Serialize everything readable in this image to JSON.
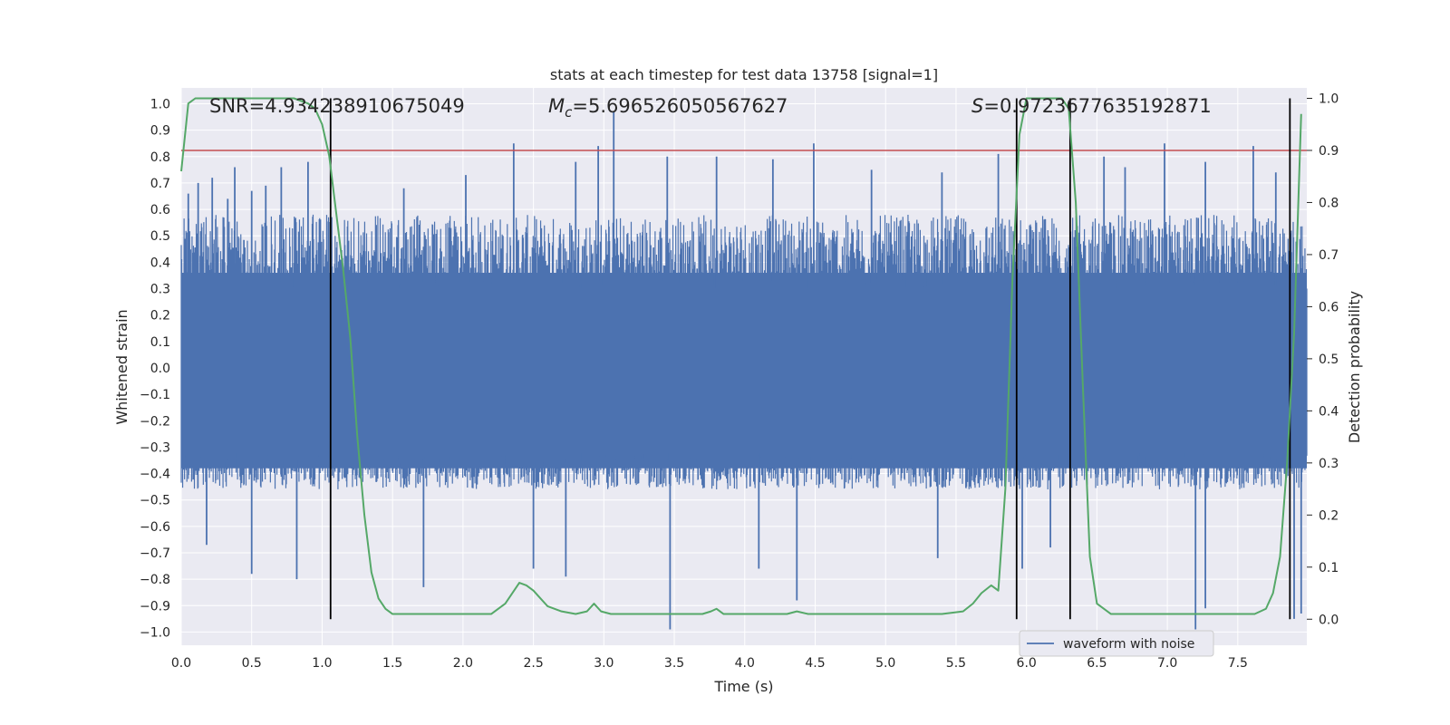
{
  "chart_data": {
    "type": "line",
    "title": "stats at each timestep for test data 13758 [signal=1]",
    "xlabel": "Time (s)",
    "ylabel_left": "Whitened strain",
    "ylabel_right": "Detection probability",
    "xlim": [
      0.0,
      7.99
    ],
    "ylim_left": [
      -1.05,
      1.06
    ],
    "ylim_right": [
      -0.05,
      1.02
    ],
    "x_ticks": [
      0.0,
      0.5,
      1.0,
      1.5,
      2.0,
      2.5,
      3.0,
      3.5,
      4.0,
      4.5,
      5.0,
      5.5,
      6.0,
      6.5,
      7.0,
      7.5
    ],
    "x_tick_labels": [
      "0.0",
      "0.5",
      "1.0",
      "1.5",
      "2.0",
      "2.5",
      "3.0",
      "3.5",
      "4.0",
      "4.5",
      "5.0",
      "5.5",
      "6.0",
      "6.5",
      "7.0",
      "7.5"
    ],
    "y_left_ticks": [
      1.0,
      0.9,
      0.8,
      0.7,
      0.6,
      0.5,
      0.4,
      0.3,
      0.2,
      0.1,
      0.0,
      -0.1,
      -0.2,
      -0.3,
      -0.4,
      -0.5,
      -0.6,
      -0.7,
      -0.8,
      -0.9,
      -1.0
    ],
    "y_left_tick_labels": [
      "1.0",
      "0.9",
      "0.8",
      "0.7",
      "0.6",
      "0.5",
      "0.4",
      "0.3",
      "0.2",
      "0.1",
      "0.0",
      "−0.1",
      "−0.2",
      "−0.3",
      "−0.4",
      "−0.5",
      "−0.6",
      "−0.7",
      "−0.8",
      "−0.9",
      "−1.0"
    ],
    "y_right_ticks": [
      1.0,
      0.9,
      0.8,
      0.7,
      0.6,
      0.5,
      0.4,
      0.3,
      0.2,
      0.1,
      0.0
    ],
    "y_right_tick_labels": [
      "1.0",
      "0.9",
      "0.8",
      "0.7",
      "0.6",
      "0.5",
      "0.4",
      "0.3",
      "0.2",
      "0.1",
      "0.0"
    ],
    "grid": true,
    "annotations": {
      "snr": "SNR=4.934238910675049",
      "mc_symbol": "M",
      "mc_sub": "c",
      "mc_value": "=5.696526050567627",
      "s_symbol": "S",
      "s_value": "=0.9723677635192871"
    },
    "threshold_line": {
      "name": "threshold",
      "y_right": 0.9,
      "color": "#c44e52"
    },
    "vertical_markers": [
      1.06,
      5.93,
      6.31,
      7.87
    ],
    "noise_series": {
      "name": "waveform with noise",
      "color": "#4c72b0",
      "samples": 8000,
      "body_lower": -0.46,
      "body_upper": 0.58,
      "spikes": [
        {
          "x": 0.05,
          "y": 0.66
        },
        {
          "x": 0.12,
          "y": 0.7
        },
        {
          "x": 0.22,
          "y": 0.72
        },
        {
          "x": 0.33,
          "y": 0.64
        },
        {
          "x": 0.38,
          "y": 0.76
        },
        {
          "x": 0.5,
          "y": 0.67
        },
        {
          "x": 0.6,
          "y": 0.69
        },
        {
          "x": 0.71,
          "y": 0.76
        },
        {
          "x": 0.9,
          "y": 0.78
        },
        {
          "x": 1.58,
          "y": 0.68
        },
        {
          "x": 2.02,
          "y": 0.73
        },
        {
          "x": 2.36,
          "y": 0.85
        },
        {
          "x": 2.8,
          "y": 0.78
        },
        {
          "x": 2.96,
          "y": 0.84
        },
        {
          "x": 3.07,
          "y": 0.97
        },
        {
          "x": 3.45,
          "y": 0.8
        },
        {
          "x": 3.8,
          "y": 0.8
        },
        {
          "x": 4.2,
          "y": 0.79
        },
        {
          "x": 4.49,
          "y": 0.85
        },
        {
          "x": 4.9,
          "y": 0.75
        },
        {
          "x": 5.4,
          "y": 0.74
        },
        {
          "x": 5.8,
          "y": 0.81
        },
        {
          "x": 6.55,
          "y": 0.8
        },
        {
          "x": 6.7,
          "y": 0.76
        },
        {
          "x": 6.98,
          "y": 0.85
        },
        {
          "x": 7.27,
          "y": 0.78
        },
        {
          "x": 7.61,
          "y": 0.84
        },
        {
          "x": 7.77,
          "y": 0.74
        },
        {
          "x": 0.18,
          "y": -0.67
        },
        {
          "x": 0.5,
          "y": -0.78
        },
        {
          "x": 0.82,
          "y": -0.8
        },
        {
          "x": 1.72,
          "y": -0.83
        },
        {
          "x": 2.5,
          "y": -0.76
        },
        {
          "x": 2.73,
          "y": -0.79
        },
        {
          "x": 3.47,
          "y": -0.99
        },
        {
          "x": 4.1,
          "y": -0.76
        },
        {
          "x": 4.37,
          "y": -0.88
        },
        {
          "x": 5.37,
          "y": -0.72
        },
        {
          "x": 5.97,
          "y": -0.76
        },
        {
          "x": 6.17,
          "y": -0.68
        },
        {
          "x": 7.2,
          "y": -0.99
        },
        {
          "x": 7.27,
          "y": -0.91
        },
        {
          "x": 7.9,
          "y": -0.95
        },
        {
          "x": 7.95,
          "y": -0.93
        }
      ]
    },
    "probability_series": {
      "name": "detection probability",
      "color": "#55a868",
      "x": [
        0.0,
        0.05,
        0.1,
        0.2,
        0.3,
        0.4,
        0.5,
        0.6,
        0.7,
        0.8,
        0.9,
        0.95,
        1.0,
        1.05,
        1.1,
        1.15,
        1.2,
        1.25,
        1.3,
        1.35,
        1.4,
        1.45,
        1.5,
        1.6,
        1.8,
        2.0,
        2.2,
        2.25,
        2.3,
        2.35,
        2.4,
        2.45,
        2.5,
        2.55,
        2.6,
        2.7,
        2.8,
        2.88,
        2.93,
        2.98,
        3.05,
        3.2,
        3.4,
        3.5,
        3.7,
        3.76,
        3.8,
        3.85,
        3.95,
        4.1,
        4.3,
        4.37,
        4.45,
        4.6,
        4.8,
        5.0,
        5.2,
        5.4,
        5.55,
        5.62,
        5.68,
        5.75,
        5.8,
        5.85,
        5.9,
        5.95,
        6.0,
        6.05,
        6.15,
        6.25,
        6.3,
        6.35,
        6.4,
        6.45,
        6.5,
        6.6,
        6.7,
        6.9,
        7.1,
        7.3,
        7.5,
        7.62,
        7.7,
        7.75,
        7.8,
        7.85,
        7.9,
        7.95
      ],
      "y": [
        0.86,
        0.99,
        1.0,
        1.0,
        1.0,
        1.0,
        1.0,
        1.0,
        1.0,
        1.0,
        0.99,
        0.98,
        0.95,
        0.89,
        0.78,
        0.67,
        0.54,
        0.35,
        0.2,
        0.09,
        0.04,
        0.02,
        0.01,
        0.01,
        0.01,
        0.01,
        0.01,
        0.02,
        0.03,
        0.05,
        0.07,
        0.065,
        0.055,
        0.04,
        0.025,
        0.015,
        0.01,
        0.015,
        0.03,
        0.015,
        0.01,
        0.01,
        0.01,
        0.01,
        0.01,
        0.015,
        0.02,
        0.01,
        0.01,
        0.01,
        0.01,
        0.015,
        0.01,
        0.01,
        0.01,
        0.01,
        0.01,
        0.01,
        0.015,
        0.03,
        0.05,
        0.065,
        0.055,
        0.25,
        0.65,
        0.93,
        1.0,
        1.0,
        1.0,
        1.0,
        0.98,
        0.8,
        0.45,
        0.12,
        0.03,
        0.01,
        0.01,
        0.01,
        0.01,
        0.01,
        0.01,
        0.01,
        0.02,
        0.05,
        0.12,
        0.3,
        0.55,
        0.97
      ]
    },
    "legend": {
      "location": "lower-right",
      "entries": [
        "waveform with noise"
      ]
    }
  }
}
